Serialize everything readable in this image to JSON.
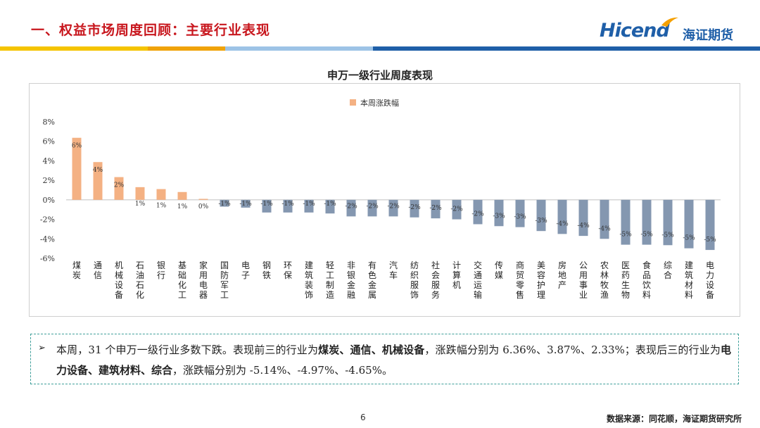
{
  "header": {
    "title": "一、权益市场周度回顾：主要行业表现",
    "logo_text": "Hicend",
    "logo_cn": "海证期货"
  },
  "colors": {
    "title_red": "#c8171e",
    "positive_bar": "#f4b183",
    "negative_bar": "#8497b0",
    "brand_blue": "#1f5fa8",
    "stripe_yellow": "#f5c400",
    "stripe_blue": "#1f5fa8"
  },
  "chart_data": {
    "type": "bar",
    "title": "申万一级行业周度表现",
    "legend": [
      "本周涨跌幅"
    ],
    "legend_position": "top-center",
    "ylim": [
      -6,
      8
    ],
    "yticks": [
      "8%",
      "6%",
      "4%",
      "2%",
      "0%",
      "-2%",
      "-4%",
      "-6%"
    ],
    "grid": false,
    "categories": [
      "煤炭",
      "通信",
      "机械设备",
      "石油石化",
      "银行",
      "基础化工",
      "家用电器",
      "国防军工",
      "电子",
      "钢铁",
      "环保",
      "建筑装饰",
      "轻工制造",
      "非银金融",
      "有色金属",
      "汽车",
      "纺织服饰",
      "社会服务",
      "计算机",
      "交通运输",
      "传媒",
      "商贸零售",
      "美容护理",
      "房地产",
      "公用事业",
      "农林牧渔",
      "医药生物",
      "食品饮料",
      "综合",
      "建筑材料",
      "电力设备"
    ],
    "values": [
      6.36,
      3.87,
      2.33,
      1.3,
      1.1,
      0.8,
      0.1,
      -0.7,
      -0.8,
      -1.3,
      -1.3,
      -1.3,
      -1.4,
      -1.7,
      -1.7,
      -1.7,
      -1.8,
      -1.9,
      -2.0,
      -2.5,
      -2.7,
      -2.8,
      -3.2,
      -3.5,
      -3.7,
      -4.0,
      -4.6,
      -4.6,
      -4.65,
      -4.97,
      -5.14
    ],
    "data_labels": [
      "6%",
      "4%",
      "2%",
      "1%",
      "1%",
      "1%",
      "0%",
      "-1%",
      "-1%",
      "-1%",
      "-1%",
      "-1%",
      "-1%",
      "-2%",
      "-2%",
      "-2%",
      "-2%",
      "-2%",
      "-2%",
      "-2%",
      "-3%",
      "-3%",
      "-3%",
      "-4%",
      "-4%",
      "-4%",
      "-5%",
      "-5%",
      "-5%",
      "-5%",
      "-5%"
    ]
  },
  "summary": {
    "bullet": "➢",
    "parts": [
      {
        "text": "本周，31 个申万一级行业多数下跌。表现前三的行业为",
        "bold": false
      },
      {
        "text": "煤炭、通信、机械设备",
        "bold": true
      },
      {
        "text": "，涨跌幅分别为 6.36%、3.87%、2.33%；表现后三的行业为",
        "bold": false
      },
      {
        "text": "电力设备、建筑材料、综合",
        "bold": true
      },
      {
        "text": "，涨跌幅分别为 -5.14%、-4.97%、-4.65%。",
        "bold": false
      }
    ]
  },
  "footer": {
    "page_number": "6",
    "source": "数据来源：同花顺，海证期货研究所"
  }
}
